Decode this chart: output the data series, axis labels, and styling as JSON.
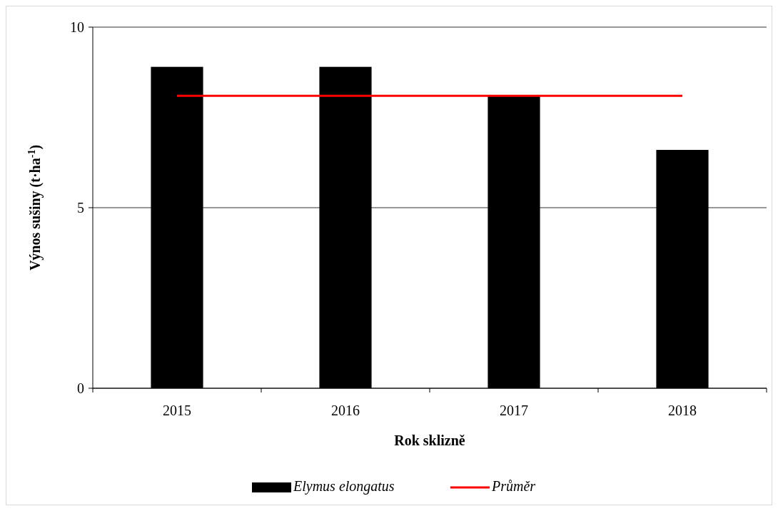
{
  "chart_data": {
    "type": "bar",
    "xlabel": "Rok sklizně",
    "ylabel": "Výnos sušiny (t·ha$^{-1}$)",
    "categories": [
      "2015",
      "2016",
      "2017",
      "2018"
    ],
    "series": [
      {
        "name": "Elymus elongatus",
        "color": "#000000",
        "values": [
          8.9,
          8.9,
          8.1,
          6.6
        ]
      },
      {
        "name": "Průměr",
        "type": "line",
        "color": "#ff0000",
        "values": [
          8.1,
          8.1,
          8.1,
          8.1
        ]
      }
    ],
    "ylim": [
      0,
      10
    ],
    "yticks": [
      0,
      5,
      10
    ],
    "grid": "y",
    "legend": "bottom",
    "marker": "none",
    "line_style": "solid"
  }
}
